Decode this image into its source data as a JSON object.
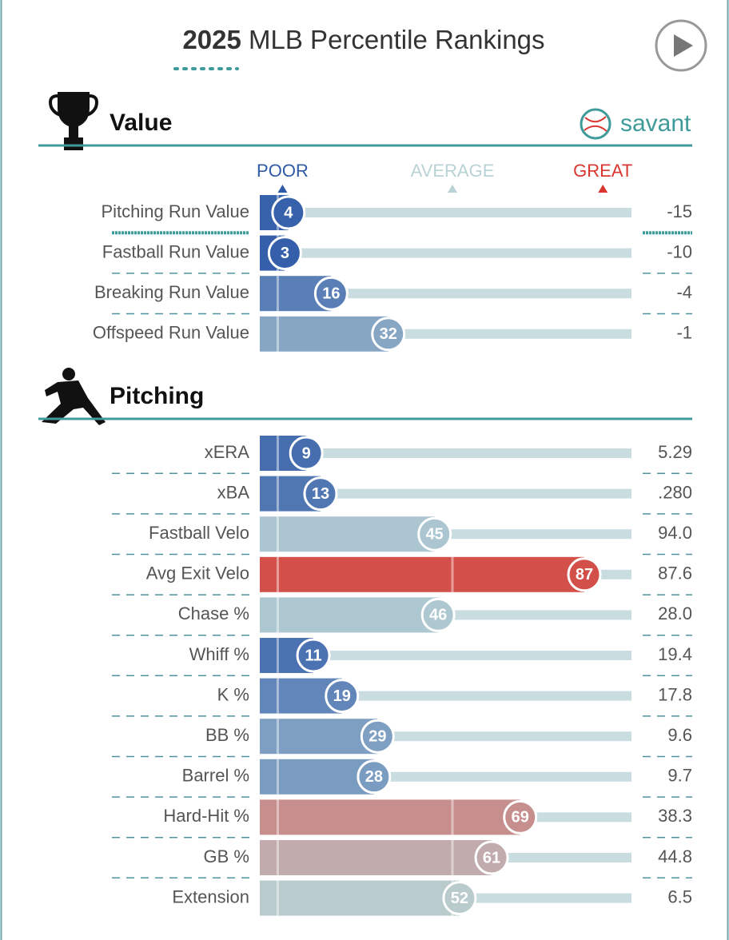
{
  "chart_data": {
    "type": "bar",
    "title_year": "2025",
    "title": "MLB Percentile Rankings",
    "brand": "savant",
    "xlim": [
      0,
      100
    ],
    "scale_labels": [
      {
        "value": 1,
        "label": "POOR",
        "color": "#2f5aa8"
      },
      {
        "value": 50,
        "label": "AVERAGE",
        "color": "#b9d2d5"
      },
      {
        "value": 94,
        "label": "GREAT",
        "color": "#d8362f"
      }
    ],
    "sections": [
      {
        "name": "Value",
        "rows": [
          {
            "label": "Pitching Run Value",
            "percentile": 4,
            "stat": "-15"
          },
          {
            "label": "Fastball Run Value",
            "percentile": 3,
            "stat": "-10"
          },
          {
            "label": "Breaking Run Value",
            "percentile": 16,
            "stat": "-4"
          },
          {
            "label": "Offspeed Run Value",
            "percentile": 32,
            "stat": "-1"
          }
        ]
      },
      {
        "name": "Pitching",
        "rows": [
          {
            "label": "xERA",
            "percentile": 9,
            "stat": "5.29"
          },
          {
            "label": "xBA",
            "percentile": 13,
            "stat": ".280"
          },
          {
            "label": "Fastball Velo",
            "percentile": 45,
            "stat": "94.0"
          },
          {
            "label": "Avg Exit Velo",
            "percentile": 87,
            "stat": "87.6"
          },
          {
            "label": "Chase %",
            "percentile": 46,
            "stat": "28.0"
          },
          {
            "label": "Whiff %",
            "percentile": 11,
            "stat": "19.4"
          },
          {
            "label": "K %",
            "percentile": 19,
            "stat": "17.8"
          },
          {
            "label": "BB %",
            "percentile": 29,
            "stat": "9.6"
          },
          {
            "label": "Barrel %",
            "percentile": 28,
            "stat": "9.7"
          },
          {
            "label": "Hard-Hit %",
            "percentile": 69,
            "stat": "38.3"
          },
          {
            "label": "GB %",
            "percentile": 61,
            "stat": "44.8"
          },
          {
            "label": "Extension",
            "percentile": 52,
            "stat": "6.5"
          }
        ]
      }
    ]
  }
}
